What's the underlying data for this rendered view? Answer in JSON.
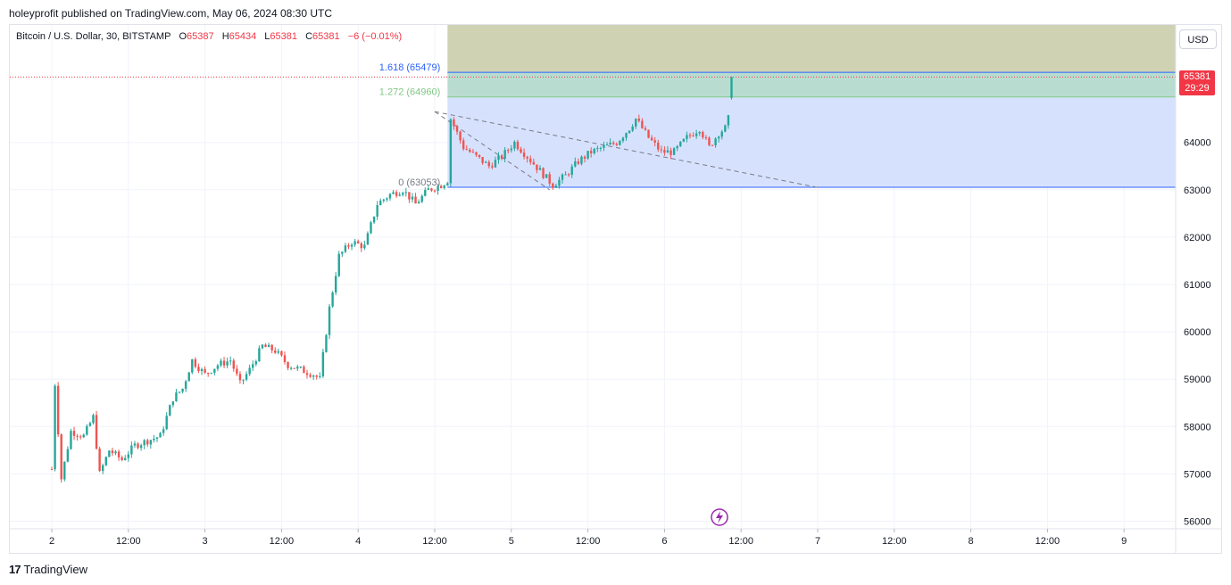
{
  "publish_line": "holeyprofit published on TradingView.com, May 06, 2024 08:30 UTC",
  "legend": {
    "symbol": "Bitcoin / U.S. Dollar, 30, BITSTAMP",
    "o_label": "O",
    "o_value": "65387",
    "h_label": "H",
    "h_value": "65434",
    "l_label": "L",
    "l_value": "65381",
    "c_label": "C",
    "c_value": "65381",
    "change": "−6 (−0.01%)"
  },
  "currency_button": "USD",
  "price_badge": {
    "price": "65381",
    "countdown": "29:29"
  },
  "footer": {
    "logo_mark": "17",
    "brand": "TradingView"
  },
  "colors": {
    "up": "#26a69a",
    "down": "#ef5350",
    "grid": "#f0f3fa",
    "fib_zone_top": "#cfd3b4",
    "fib_zone_mid": "#b9dcd0",
    "fib_zone_base": "#d6e2fd",
    "fib_line_1618": "#2962ff",
    "fib_line_1272": "#81c784",
    "fib_line_0": "#2962ff"
  },
  "chart_data": {
    "type": "candlestick",
    "title": "Bitcoin / U.S. Dollar, 30, BITSTAMP",
    "y_axis_ticks": [
      56000,
      57000,
      58000,
      59000,
      60000,
      61000,
      62000,
      63000,
      64000
    ],
    "x_axis_ticks": [
      "2",
      "12:00",
      "3",
      "12:00",
      "4",
      "12:00",
      "5",
      "12:00",
      "6",
      "12:00",
      "7",
      "12:00",
      "8",
      "12:00",
      "9"
    ],
    "ylim": [
      55800,
      66500
    ],
    "grid": true,
    "current_price": 65381,
    "fib_extension": {
      "levels": [
        {
          "ratio": "1.618",
          "price": 65479,
          "label": "1.618 (65479)"
        },
        {
          "ratio": "1.272",
          "price": 64960,
          "label": "1.272 (64960)"
        },
        {
          "ratio": "0",
          "price": 63053,
          "label": "0 (63053)"
        }
      ]
    },
    "trendline": {
      "from": [
        "4 12:00",
        64650
      ],
      "to": [
        "7",
        63050
      ]
    },
    "price_path": [
      [
        "2 00:00",
        57100
      ],
      [
        "2 00:30",
        58900
      ],
      [
        "2 01:30",
        56900
      ],
      [
        "2 03:00",
        57900
      ],
      [
        "2 05:00",
        57800
      ],
      [
        "2 06:30",
        58200
      ],
      [
        "2 07:30",
        57000
      ],
      [
        "2 09:00",
        57500
      ],
      [
        "2 11:00",
        57300
      ],
      [
        "2 13:00",
        57600
      ],
      [
        "2 15:00",
        57700
      ],
      [
        "2 17:00",
        57800
      ],
      [
        "2 19:00",
        58600
      ],
      [
        "2 20:30",
        58800
      ],
      [
        "2 22:00",
        59400
      ],
      [
        "3 00:00",
        59100
      ],
      [
        "3 02:00",
        59300
      ],
      [
        "3 04:00",
        59400
      ],
      [
        "3 05:30",
        58900
      ],
      [
        "3 07:00",
        59200
      ],
      [
        "3 09:00",
        59700
      ],
      [
        "3 11:00",
        59600
      ],
      [
        "3 13:00",
        59300
      ],
      [
        "3 15:00",
        59200
      ],
      [
        "3 17:00",
        59100
      ],
      [
        "3 18:00",
        59000
      ],
      [
        "3 19:30",
        60500
      ],
      [
        "3 21:00",
        61600
      ],
      [
        "3 23:00",
        61900
      ],
      [
        "4 01:00",
        61800
      ],
      [
        "4 03:00",
        62700
      ],
      [
        "4 05:00",
        62900
      ],
      [
        "4 07:00",
        63000
      ],
      [
        "4 09:00",
        62700
      ],
      [
        "4 11:00",
        63000
      ],
      [
        "4 13:00",
        63100
      ],
      [
        "4 14:00",
        63200
      ],
      [
        "4 14:30",
        64500
      ],
      [
        "4 16:30",
        63900
      ],
      [
        "4 18:30",
        63700
      ],
      [
        "4 20:30",
        63500
      ],
      [
        "4 22:30",
        63700
      ],
      [
        "5 00:30",
        64000
      ],
      [
        "5 02:30",
        63700
      ],
      [
        "5 04:30",
        63400
      ],
      [
        "5 06:30",
        63100
      ],
      [
        "5 08:30",
        63300
      ],
      [
        "5 10:30",
        63600
      ],
      [
        "5 12:30",
        63800
      ],
      [
        "5 14:30",
        63900
      ],
      [
        "5 16:30",
        64000
      ],
      [
        "5 18:30",
        64300
      ],
      [
        "5 19:30",
        64500
      ],
      [
        "5 21:30",
        64100
      ],
      [
        "5 23:30",
        63800
      ],
      [
        "6 01:30",
        63800
      ],
      [
        "6 03:30",
        64100
      ],
      [
        "6 05:30",
        64300
      ],
      [
        "6 07:00",
        63900
      ],
      [
        "6 08:30",
        64200
      ],
      [
        "6 09:30",
        64300
      ],
      [
        "6 10:00",
        64500
      ],
      [
        "6 10:30",
        65381
      ]
    ]
  }
}
